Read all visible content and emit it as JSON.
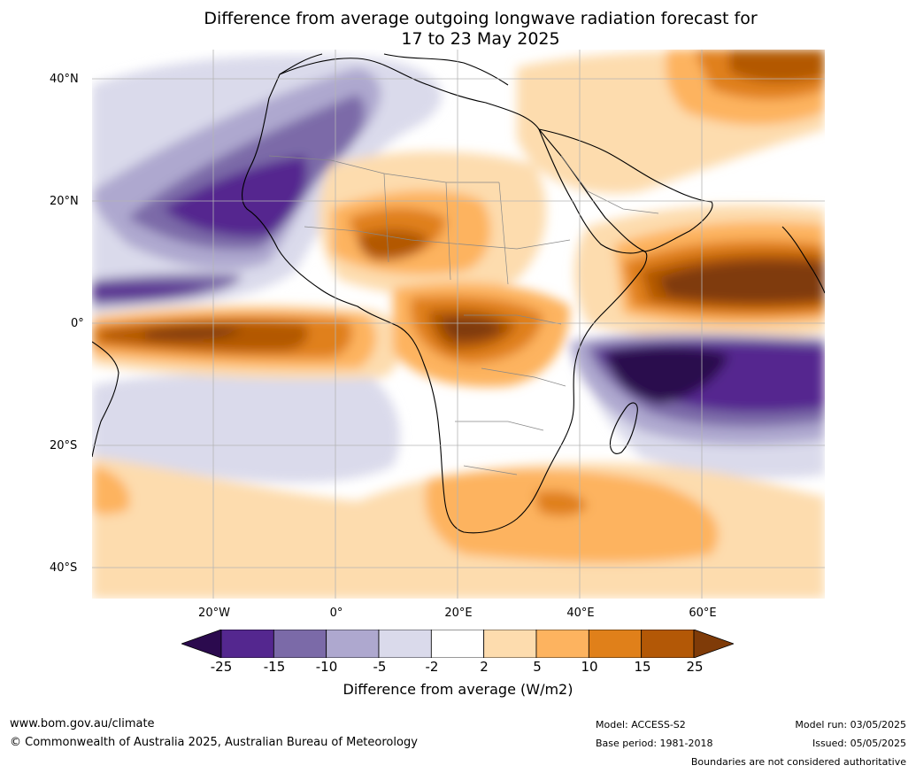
{
  "title": {
    "line1": "Difference from average outgoing longwave radiation forecast for",
    "line2": "17 to 23 May 2025"
  },
  "map": {
    "lat_labels": [
      "40°N",
      "20°N",
      "0°",
      "20°S",
      "40°S"
    ],
    "lon_labels": [
      "20°W",
      "0°",
      "20°E",
      "40°E",
      "60°E"
    ],
    "grid": true
  },
  "colorbar": {
    "ticks": [
      "-25",
      "-15",
      "-10",
      "-5",
      "-2",
      "2",
      "5",
      "10",
      "15",
      "25"
    ],
    "colors": [
      "#2b0a4e",
      "#54278f",
      "#7b6aa8",
      "#aea8cf",
      "#dadaeb",
      "#ffffff",
      "#fddcae",
      "#fdb35f",
      "#e0801a",
      "#b35806",
      "#7f3b08"
    ],
    "label": "Difference from average (W/m2)"
  },
  "footer": {
    "url": "www.bom.gov.au/climate",
    "copyright": "© Commonwealth of Australia 2025, Australian Bureau of Meteorology",
    "model": "Model: ACCESS-S2",
    "base_period": "Base period: 1981-2018",
    "model_run": "Model run: 03/05/2025",
    "issued": "Issued: 05/05/2025",
    "disclaimer": "Boundaries are not considered authoritative"
  }
}
